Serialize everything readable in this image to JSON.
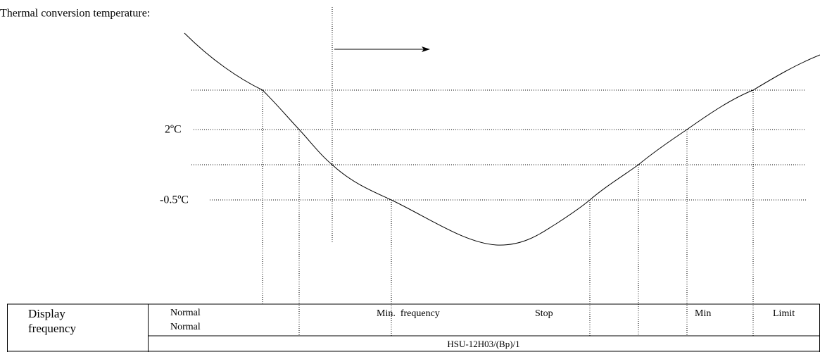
{
  "title": "Thermal conversion temperature:",
  "levels": [
    "2ºC",
    "-0.5ºC"
  ],
  "table": {
    "header": [
      "Display",
      "frequency"
    ],
    "zones": [
      "Normal",
      "Normal",
      "Min.  frequency",
      "Stop",
      "Min",
      "Limit"
    ],
    "footer": "HSU-12H03/(Bp)/1"
  }
}
